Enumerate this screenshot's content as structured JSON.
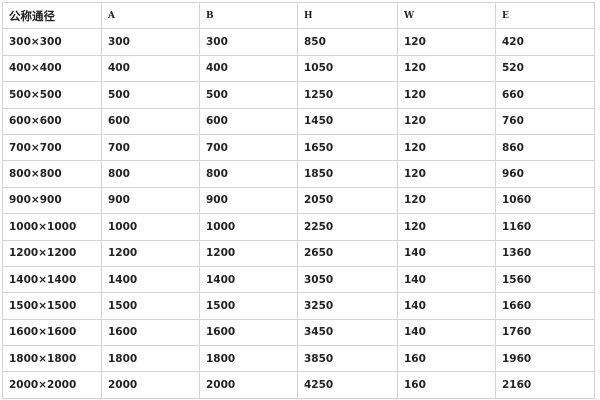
{
  "table": {
    "headers": [
      "公称通径",
      "A",
      "B",
      "H",
      "W",
      "E"
    ],
    "rows": [
      [
        "300×300",
        "300",
        "300",
        "850",
        "120",
        "420"
      ],
      [
        "400×400",
        "400",
        "400",
        "1050",
        "120",
        "520"
      ],
      [
        "500×500",
        "500",
        "500",
        "1250",
        "120",
        "660"
      ],
      [
        "600×600",
        "600",
        "600",
        "1450",
        "120",
        "760"
      ],
      [
        "700×700",
        "700",
        "700",
        "1650",
        "120",
        "860"
      ],
      [
        "800×800",
        "800",
        "800",
        "1850",
        "120",
        "960"
      ],
      [
        "900×900",
        "900",
        "900",
        "2050",
        "120",
        "1060"
      ],
      [
        "1000×1000",
        "1000",
        "1000",
        "2250",
        "120",
        "1160"
      ],
      [
        "1200×1200",
        "1200",
        "1200",
        "2650",
        "140",
        "1360"
      ],
      [
        "1400×1400",
        "1400",
        "1400",
        "3050",
        "140",
        "1560"
      ],
      [
        "1500×1500",
        "1500",
        "1500",
        "3250",
        "140",
        "1660"
      ],
      [
        "1600×1600",
        "1600",
        "1600",
        "3450",
        "140",
        "1760"
      ],
      [
        "1800×1800",
        "1800",
        "1800",
        "3850",
        "160",
        "1960"
      ],
      [
        "2000×2000",
        "2000",
        "2000",
        "4250",
        "160",
        "2160"
      ]
    ]
  }
}
